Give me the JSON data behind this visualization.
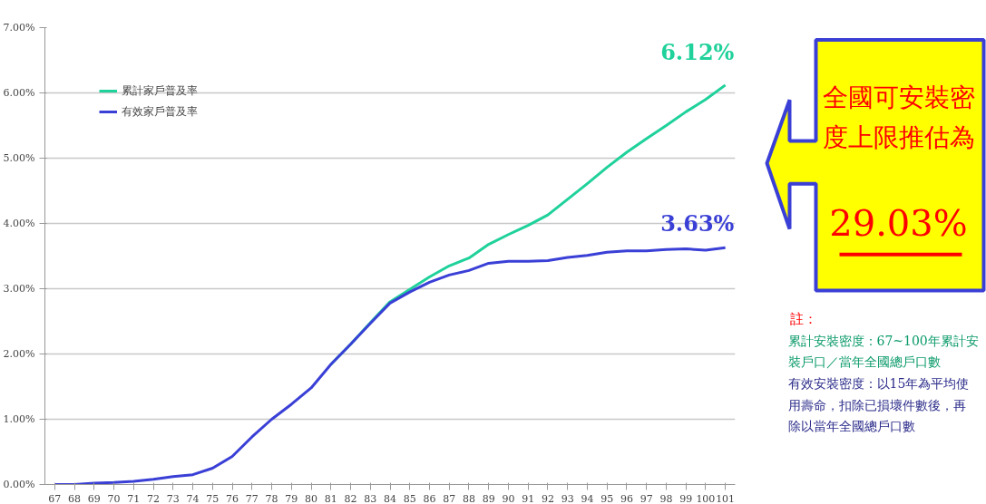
{
  "chart_data": {
    "type": "line",
    "categories": [
      "67",
      "68",
      "69",
      "70",
      "71",
      "72",
      "73",
      "74",
      "75",
      "76",
      "77",
      "78",
      "79",
      "80",
      "81",
      "82",
      "83",
      "84",
      "85",
      "86",
      "87",
      "88",
      "89",
      "90",
      "91",
      "92",
      "93",
      "94",
      "95",
      "96",
      "97",
      "98",
      "99",
      "100",
      "101"
    ],
    "series": [
      {
        "name": "累計家戶普及率",
        "color": "#1fd19a",
        "values": [
          null,
          null,
          null,
          null,
          null,
          null,
          null,
          null,
          null,
          null,
          null,
          null,
          null,
          null,
          1.84,
          2.15,
          2.48,
          2.8,
          2.99,
          3.18,
          3.35,
          3.47,
          3.68,
          3.83,
          3.97,
          4.13,
          4.37,
          4.61,
          4.86,
          5.09,
          5.3,
          5.5,
          5.71,
          5.9,
          6.12
        ]
      },
      {
        "name": "有效家戶普及率",
        "color": "#3a3fd6",
        "values": [
          0.0,
          0.0,
          0.02,
          0.03,
          0.05,
          0.08,
          0.12,
          0.15,
          0.25,
          0.43,
          0.73,
          1.0,
          1.23,
          1.48,
          1.84,
          2.15,
          2.47,
          2.78,
          2.95,
          3.1,
          3.21,
          3.28,
          3.39,
          3.42,
          3.42,
          3.43,
          3.48,
          3.51,
          3.56,
          3.58,
          3.58,
          3.6,
          3.61,
          3.59,
          3.63
        ]
      }
    ],
    "ylim": [
      0,
      7
    ],
    "yticks": [
      {
        "value": 0,
        "label": "0.00%"
      },
      {
        "value": 1,
        "label": "1.00%"
      },
      {
        "value": 2,
        "label": "2.00%"
      },
      {
        "value": 3,
        "label": "3.00%"
      },
      {
        "value": 4,
        "label": "4.00%"
      },
      {
        "value": 5,
        "label": "5.00%"
      },
      {
        "value": 6,
        "label": "6.00%"
      },
      {
        "value": 7,
        "label": "7.00%"
      }
    ],
    "grid": "y",
    "legend": "top left",
    "line_style": "solid",
    "marker": "none",
    "annotations": [
      {
        "text": "6.12%",
        "x": "101",
        "y": 6.12
      },
      {
        "text": "3.63%",
        "x": "101",
        "y": 3.63
      },
      "全國可安裝密度上限推估為",
      "29.03%",
      "註：",
      "累計安裝密度：67~100年累計安裝戶口／當年全國總戶口數",
      "有效安裝密度：以15年為平均使用壽命，扣除已損壞件數後，再除以當年全國總戶口數"
    ]
  }
}
